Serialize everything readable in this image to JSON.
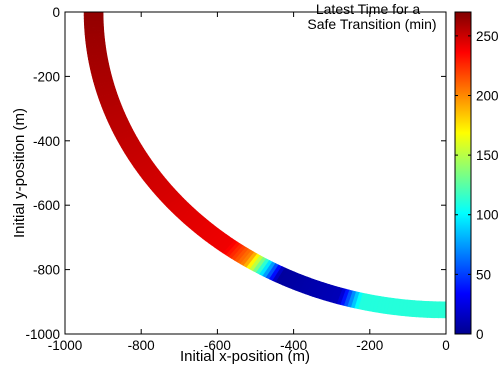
{
  "chart_data": {
    "type": "heatmap",
    "title_lines": [
      "Latest Time for a",
      "Safe Transition (min)"
    ],
    "xlabel": "Initial x-position (m)",
    "ylabel": "Initial y-position (m)",
    "xlim": [
      -1000,
      0
    ],
    "ylim": [
      -1000,
      0
    ],
    "x_ticks": [
      -1000,
      -800,
      -600,
      -400,
      -200,
      0
    ],
    "y_ticks": [
      0,
      -200,
      -400,
      -600,
      -800,
      -1000
    ],
    "colorbar": {
      "colormap": "jet",
      "range": [
        0,
        270
      ],
      "ticks": [
        250,
        200,
        150,
        100,
        50,
        0
      ]
    },
    "band": {
      "shape": "circular arc (quarter circle)",
      "center": [
        0,
        0
      ],
      "inner_radius_m": 900,
      "outer_radius_m": 950
    },
    "segments": [
      {
        "angle_from_deg": 90,
        "angle_to_deg": 38,
        "value_start": 265,
        "value_end": 240
      },
      {
        "angle_from_deg": 38,
        "angle_to_deg": 34,
        "value_start": 240,
        "value_end": 200
      },
      {
        "angle_from_deg": 34,
        "angle_to_deg": 28,
        "value_start": 200,
        "value_end": 8
      },
      {
        "angle_from_deg": 28,
        "angle_to_deg": 17.5,
        "value_start": 8,
        "value_end": 15
      },
      {
        "angle_from_deg": 17.5,
        "angle_to_deg": 14,
        "value_start": 15,
        "value_end": 110
      },
      {
        "angle_from_deg": 14,
        "angle_to_deg": 0,
        "value_start": 110,
        "value_end": 112
      }
    ],
    "grid": false
  }
}
